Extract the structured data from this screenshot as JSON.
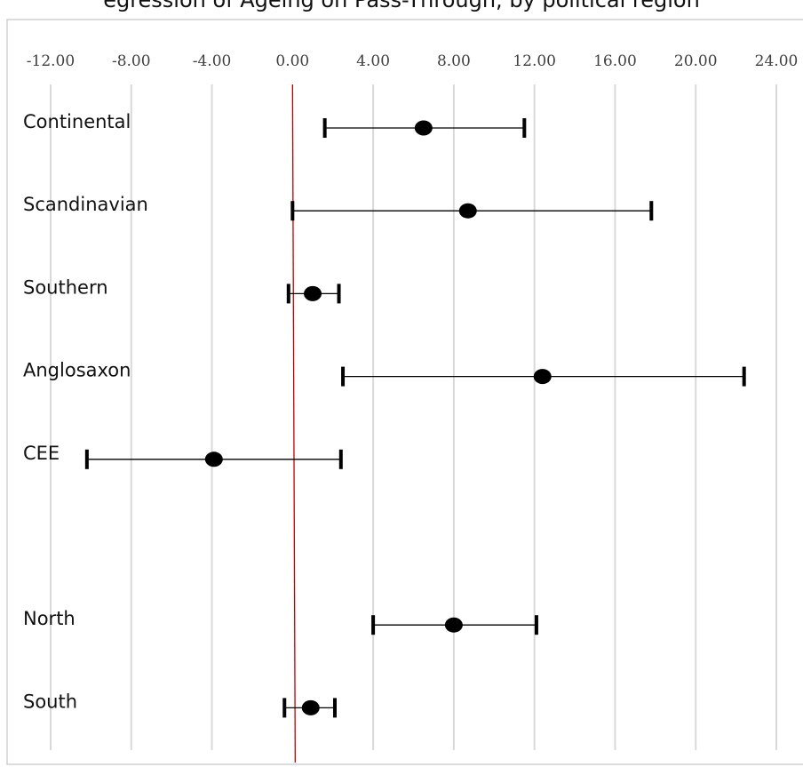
{
  "page": {
    "title": "egression of Ageing on Pass-Through, by political region"
  },
  "chart_data": {
    "type": "scatter",
    "subtype": "forest-plot",
    "title": "egression of Ageing on Pass-Through, by political region",
    "xlim": [
      -12,
      24
    ],
    "x_ticks": [
      "-12.00",
      "-8.00",
      "-4.00",
      "0.00",
      "4.00",
      "8.00",
      "12.00",
      "16.00",
      "20.00",
      "24.00"
    ],
    "x_tick_values": [
      -12,
      -8,
      -4,
      0,
      4,
      8,
      12,
      16,
      20,
      24
    ],
    "x_axis_position": "top",
    "grid": "vertical",
    "reference_line": {
      "x": 0,
      "color": "#c00000"
    },
    "colors": {
      "grid": "#d9d9d9",
      "frame": "#d0d0d0",
      "marker": "#000000",
      "reference": "#c00000"
    },
    "rows": [
      {
        "label": "Continental",
        "estimate": 6.5,
        "low": 1.6,
        "high": 11.5,
        "slot": 0
      },
      {
        "label": "Scandinavian",
        "estimate": 8.7,
        "low": 0.0,
        "high": 17.8,
        "slot": 1
      },
      {
        "label": "Southern",
        "estimate": 1.0,
        "low": -0.2,
        "high": 2.3,
        "slot": 2
      },
      {
        "label": "Anglosaxon",
        "estimate": 12.4,
        "low": 2.5,
        "high": 22.4,
        "slot": 3
      },
      {
        "label": "CEE",
        "estimate": -3.9,
        "low": -10.2,
        "high": 2.4,
        "slot": 4
      },
      {
        "label": "North",
        "estimate": 8.0,
        "low": 4.0,
        "high": 12.1,
        "slot": 6
      },
      {
        "label": "South",
        "estimate": 0.9,
        "low": -0.4,
        "high": 2.1,
        "slot": 7
      }
    ]
  }
}
